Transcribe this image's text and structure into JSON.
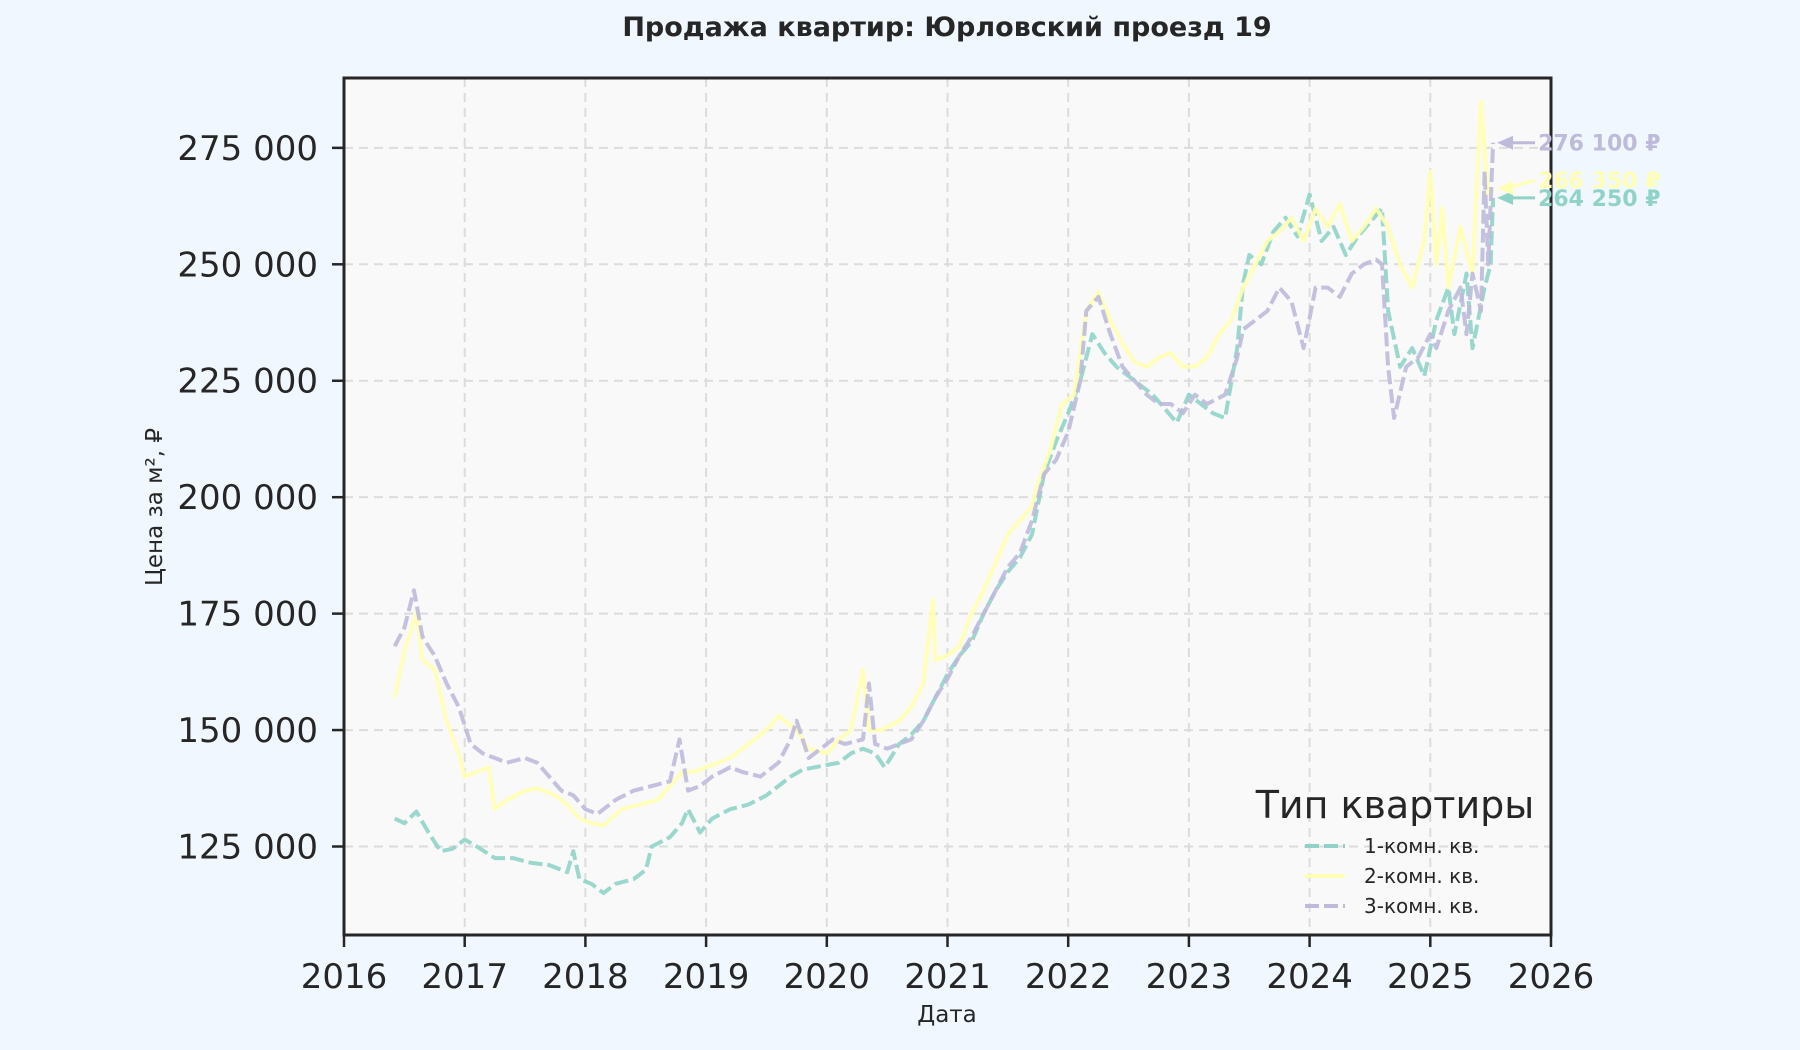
{
  "chart_data": {
    "type": "line",
    "title": "Продажа квартир: Юрловский проезд 19",
    "xlabel": "Дата",
    "ylabel": "Цена за м², ₽",
    "xlim": [
      2016.0,
      2026.0
    ],
    "ylim": [
      106000,
      290000
    ],
    "x_ticks": [
      2016,
      2017,
      2018,
      2019,
      2020,
      2021,
      2022,
      2023,
      2024,
      2025,
      2026
    ],
    "y_ticks": [
      125000,
      150000,
      175000,
      200000,
      225000,
      250000,
      275000
    ],
    "y_tick_labels": [
      "125 000",
      "150 000",
      "175 000",
      "200 000",
      "225 000",
      "250 000",
      "275 000"
    ],
    "grid": true,
    "legend": {
      "title": "Тип квартиры",
      "placement": "lower-right"
    },
    "series": [
      {
        "name": "1-комн. кв.",
        "color": "#8fd3c8",
        "dash": "dashed",
        "end_label": "264 250 ₽",
        "points": [
          [
            2016.42,
            131000
          ],
          [
            2016.5,
            130000
          ],
          [
            2016.6,
            132500
          ],
          [
            2016.7,
            128000
          ],
          [
            2016.8,
            124000
          ],
          [
            2016.9,
            124500
          ],
          [
            2017.0,
            126500
          ],
          [
            2017.1,
            125000
          ],
          [
            2017.25,
            122500
          ],
          [
            2017.4,
            122500
          ],
          [
            2017.55,
            121500
          ],
          [
            2017.7,
            121000
          ],
          [
            2017.85,
            119500
          ],
          [
            2017.9,
            124000
          ],
          [
            2017.95,
            118000
          ],
          [
            2018.05,
            117000
          ],
          [
            2018.15,
            115000
          ],
          [
            2018.25,
            117000
          ],
          [
            2018.4,
            118000
          ],
          [
            2018.5,
            120000
          ],
          [
            2018.55,
            125000
          ],
          [
            2018.7,
            127000
          ],
          [
            2018.8,
            130000
          ],
          [
            2018.85,
            133000
          ],
          [
            2018.95,
            128000
          ],
          [
            2019.05,
            131000
          ],
          [
            2019.2,
            133000
          ],
          [
            2019.35,
            134000
          ],
          [
            2019.5,
            136000
          ],
          [
            2019.6,
            138000
          ],
          [
            2019.7,
            140000
          ],
          [
            2019.8,
            141500
          ],
          [
            2019.9,
            142000
          ],
          [
            2020.0,
            142500
          ],
          [
            2020.1,
            143000
          ],
          [
            2020.2,
            145000
          ],
          [
            2020.3,
            146000
          ],
          [
            2020.4,
            145000
          ],
          [
            2020.48,
            142000
          ],
          [
            2020.6,
            147000
          ],
          [
            2020.7,
            149000
          ],
          [
            2020.8,
            152000
          ],
          [
            2020.9,
            157000
          ],
          [
            2021.0,
            162000
          ],
          [
            2021.1,
            166000
          ],
          [
            2021.2,
            169000
          ],
          [
            2021.3,
            175000
          ],
          [
            2021.4,
            180000
          ],
          [
            2021.5,
            184000
          ],
          [
            2021.6,
            187000
          ],
          [
            2021.7,
            192000
          ],
          [
            2021.8,
            205000
          ],
          [
            2021.9,
            212000
          ],
          [
            2022.0,
            218000
          ],
          [
            2022.1,
            225000
          ],
          [
            2022.15,
            230000
          ],
          [
            2022.2,
            235000
          ],
          [
            2022.3,
            231000
          ],
          [
            2022.4,
            228000
          ],
          [
            2022.5,
            226000
          ],
          [
            2022.6,
            224000
          ],
          [
            2022.7,
            222000
          ],
          [
            2022.8,
            219000
          ],
          [
            2022.9,
            216000
          ],
          [
            2023.0,
            222000
          ],
          [
            2023.1,
            220000
          ],
          [
            2023.2,
            218000
          ],
          [
            2023.3,
            217000
          ],
          [
            2023.4,
            232000
          ],
          [
            2023.45,
            246000
          ],
          [
            2023.5,
            252000
          ],
          [
            2023.6,
            250000
          ],
          [
            2023.7,
            257000
          ],
          [
            2023.8,
            260000
          ],
          [
            2023.9,
            256000
          ],
          [
            2024.0,
            265000
          ],
          [
            2024.1,
            255000
          ],
          [
            2024.2,
            258000
          ],
          [
            2024.3,
            252000
          ],
          [
            2024.4,
            256000
          ],
          [
            2024.5,
            259000
          ],
          [
            2024.6,
            262000
          ],
          [
            2024.65,
            240000
          ],
          [
            2024.75,
            228000
          ],
          [
            2024.85,
            232000
          ],
          [
            2024.95,
            226000
          ],
          [
            2025.05,
            238000
          ],
          [
            2025.15,
            245000
          ],
          [
            2025.2,
            235000
          ],
          [
            2025.3,
            248000
          ],
          [
            2025.35,
            232000
          ],
          [
            2025.45,
            245000
          ],
          [
            2025.5,
            250000
          ],
          [
            2025.52,
            264250
          ]
        ]
      },
      {
        "name": "2-комн. кв.",
        "color": "#ffffb3",
        "dash": "solid",
        "end_label": "266 350 ₽",
        "points": [
          [
            2016.42,
            157000
          ],
          [
            2016.5,
            167000
          ],
          [
            2016.6,
            175000
          ],
          [
            2016.65,
            165000
          ],
          [
            2016.75,
            163000
          ],
          [
            2016.85,
            152000
          ],
          [
            2016.95,
            145000
          ],
          [
            2017.0,
            140000
          ],
          [
            2017.1,
            141000
          ],
          [
            2017.2,
            142000
          ],
          [
            2017.25,
            133000
          ],
          [
            2017.35,
            135000
          ],
          [
            2017.5,
            137000
          ],
          [
            2017.6,
            137500
          ],
          [
            2017.75,
            136000
          ],
          [
            2017.85,
            134000
          ],
          [
            2017.95,
            131000
          ],
          [
            2018.05,
            130000
          ],
          [
            2018.15,
            129500
          ],
          [
            2018.3,
            133000
          ],
          [
            2018.45,
            134000
          ],
          [
            2018.6,
            135000
          ],
          [
            2018.7,
            138000
          ],
          [
            2018.8,
            141000
          ],
          [
            2018.9,
            141000
          ],
          [
            2019.0,
            142000
          ],
          [
            2019.1,
            143000
          ],
          [
            2019.2,
            144000
          ],
          [
            2019.35,
            147000
          ],
          [
            2019.5,
            150000
          ],
          [
            2019.6,
            153000
          ],
          [
            2019.75,
            150000
          ],
          [
            2019.85,
            146000
          ],
          [
            2020.0,
            145000
          ],
          [
            2020.1,
            148000
          ],
          [
            2020.2,
            150000
          ],
          [
            2020.3,
            163000
          ],
          [
            2020.35,
            150000
          ],
          [
            2020.45,
            150000
          ],
          [
            2020.6,
            152000
          ],
          [
            2020.7,
            155000
          ],
          [
            2020.8,
            160000
          ],
          [
            2020.88,
            178000
          ],
          [
            2020.9,
            165000
          ],
          [
            2021.0,
            166000
          ],
          [
            2021.1,
            168000
          ],
          [
            2021.2,
            175000
          ],
          [
            2021.3,
            180000
          ],
          [
            2021.4,
            186000
          ],
          [
            2021.5,
            192000
          ],
          [
            2021.6,
            195000
          ],
          [
            2021.7,
            198000
          ],
          [
            2021.75,
            203000
          ],
          [
            2021.85,
            210000
          ],
          [
            2021.95,
            220000
          ],
          [
            2022.05,
            222000
          ],
          [
            2022.15,
            240000
          ],
          [
            2022.25,
            244000
          ],
          [
            2022.35,
            238000
          ],
          [
            2022.45,
            233000
          ],
          [
            2022.55,
            229000
          ],
          [
            2022.65,
            228000
          ],
          [
            2022.75,
            230000
          ],
          [
            2022.85,
            231000
          ],
          [
            2022.95,
            228000
          ],
          [
            2023.05,
            228000
          ],
          [
            2023.15,
            230000
          ],
          [
            2023.25,
            235000
          ],
          [
            2023.35,
            238000
          ],
          [
            2023.45,
            245000
          ],
          [
            2023.55,
            250000
          ],
          [
            2023.65,
            255000
          ],
          [
            2023.75,
            257000
          ],
          [
            2023.85,
            260000
          ],
          [
            2023.95,
            255000
          ],
          [
            2024.05,
            262000
          ],
          [
            2024.15,
            258000
          ],
          [
            2024.25,
            263000
          ],
          [
            2024.35,
            255000
          ],
          [
            2024.45,
            258000
          ],
          [
            2024.55,
            262000
          ],
          [
            2024.65,
            258000
          ],
          [
            2024.75,
            250000
          ],
          [
            2024.85,
            245000
          ],
          [
            2024.95,
            255000
          ],
          [
            2025.0,
            270000
          ],
          [
            2025.05,
            250000
          ],
          [
            2025.1,
            262000
          ],
          [
            2025.15,
            245000
          ],
          [
            2025.25,
            258000
          ],
          [
            2025.35,
            248000
          ],
          [
            2025.42,
            285000
          ],
          [
            2025.48,
            265000
          ],
          [
            2025.52,
            266350
          ]
        ]
      },
      {
        "name": "3-комн. кв.",
        "color": "#bebada",
        "dash": "dashed",
        "end_label": "276 100 ₽",
        "points": [
          [
            2016.42,
            168000
          ],
          [
            2016.5,
            172000
          ],
          [
            2016.58,
            180000
          ],
          [
            2016.65,
            170000
          ],
          [
            2016.75,
            166000
          ],
          [
            2016.85,
            160000
          ],
          [
            2016.95,
            155000
          ],
          [
            2017.05,
            147000
          ],
          [
            2017.15,
            145000
          ],
          [
            2017.25,
            144000
          ],
          [
            2017.35,
            143000
          ],
          [
            2017.5,
            144000
          ],
          [
            2017.6,
            143000
          ],
          [
            2017.7,
            140000
          ],
          [
            2017.8,
            137000
          ],
          [
            2017.9,
            136000
          ],
          [
            2018.0,
            133000
          ],
          [
            2018.1,
            132000
          ],
          [
            2018.25,
            135000
          ],
          [
            2018.4,
            137000
          ],
          [
            2018.55,
            138000
          ],
          [
            2018.7,
            139000
          ],
          [
            2018.78,
            148000
          ],
          [
            2018.85,
            137000
          ],
          [
            2018.95,
            138000
          ],
          [
            2019.05,
            140000
          ],
          [
            2019.2,
            142000
          ],
          [
            2019.3,
            141000
          ],
          [
            2019.45,
            140000
          ],
          [
            2019.6,
            143000
          ],
          [
            2019.7,
            148000
          ],
          [
            2019.75,
            152000
          ],
          [
            2019.85,
            144000
          ],
          [
            2019.95,
            146000
          ],
          [
            2020.05,
            148000
          ],
          [
            2020.15,
            147000
          ],
          [
            2020.3,
            148000
          ],
          [
            2020.35,
            160000
          ],
          [
            2020.4,
            147000
          ],
          [
            2020.5,
            146000
          ],
          [
            2020.6,
            147000
          ],
          [
            2020.7,
            148000
          ],
          [
            2020.8,
            152000
          ],
          [
            2020.9,
            157000
          ],
          [
            2021.0,
            161000
          ],
          [
            2021.1,
            166000
          ],
          [
            2021.2,
            170000
          ],
          [
            2021.3,
            175000
          ],
          [
            2021.4,
            180000
          ],
          [
            2021.5,
            185000
          ],
          [
            2021.6,
            188000
          ],
          [
            2021.7,
            195000
          ],
          [
            2021.8,
            205000
          ],
          [
            2021.9,
            208000
          ],
          [
            2022.0,
            214000
          ],
          [
            2022.1,
            225000
          ],
          [
            2022.15,
            240000
          ],
          [
            2022.25,
            243000
          ],
          [
            2022.35,
            235000
          ],
          [
            2022.45,
            228000
          ],
          [
            2022.55,
            225000
          ],
          [
            2022.65,
            222000
          ],
          [
            2022.75,
            220000
          ],
          [
            2022.85,
            220000
          ],
          [
            2022.95,
            218000
          ],
          [
            2023.05,
            222000
          ],
          [
            2023.15,
            220000
          ],
          [
            2023.3,
            222000
          ],
          [
            2023.4,
            230000
          ],
          [
            2023.45,
            236000
          ],
          [
            2023.55,
            238000
          ],
          [
            2023.65,
            240000
          ],
          [
            2023.75,
            245000
          ],
          [
            2023.85,
            242000
          ],
          [
            2023.95,
            232000
          ],
          [
            2024.05,
            245000
          ],
          [
            2024.15,
            245000
          ],
          [
            2024.25,
            243000
          ],
          [
            2024.35,
            248000
          ],
          [
            2024.45,
            250000
          ],
          [
            2024.55,
            251000
          ],
          [
            2024.6,
            250000
          ],
          [
            2024.65,
            228000
          ],
          [
            2024.7,
            217000
          ],
          [
            2024.8,
            228000
          ],
          [
            2024.9,
            230000
          ],
          [
            2025.0,
            235000
          ],
          [
            2025.05,
            232000
          ],
          [
            2025.15,
            240000
          ],
          [
            2025.25,
            245000
          ],
          [
            2025.3,
            235000
          ],
          [
            2025.35,
            248000
          ],
          [
            2025.42,
            240000
          ],
          [
            2025.45,
            270000
          ],
          [
            2025.48,
            250000
          ],
          [
            2025.52,
            276100
          ]
        ]
      }
    ]
  }
}
